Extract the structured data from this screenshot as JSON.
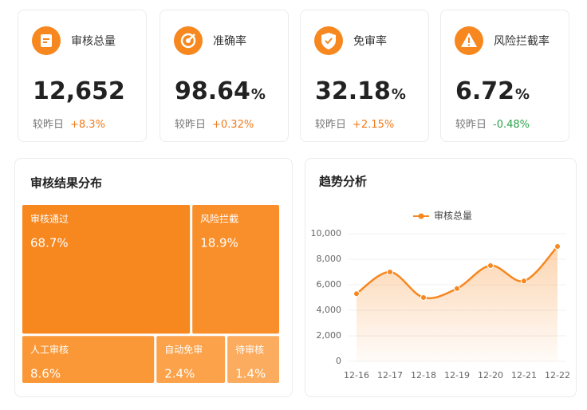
{
  "cards": [
    {
      "label": "审核总量",
      "value": "12,652",
      "compare_label": "较昨日",
      "change": "+8.3%"
    },
    {
      "label": "准确率",
      "value": "98.64",
      "unit": "%",
      "compare_label": "较昨日",
      "change": "+0.32%"
    },
    {
      "label": "免审率",
      "value": "32.18",
      "unit": "%",
      "compare_label": "较昨日",
      "change": "+2.15%"
    },
    {
      "label": "风险拦截率",
      "value": "6.72",
      "unit": "%",
      "compare_label": "较昨日",
      "change": "-0.48%"
    }
  ],
  "chart_data": [
    {
      "type": "treemap",
      "title": "审核结果分布",
      "categories": [
        "审核通过",
        "风险拦截",
        "人工审核",
        "自动免审",
        "待审核"
      ],
      "values": [
        68.7,
        18.9,
        8.6,
        2.4,
        1.4
      ],
      "value_labels": [
        "68.7%",
        "18.9%",
        "8.6%",
        "2.4%",
        "1.4%"
      ],
      "colors": [
        "#f7871f",
        "#f98f2b",
        "#fa9837",
        "#fba24b",
        "#fbac5e"
      ]
    },
    {
      "type": "line",
      "title": "趋势分析",
      "categories": [
        "12-16",
        "12-17",
        "12-18",
        "12-19",
        "12-20",
        "12-21",
        "12-22"
      ],
      "series": [
        {
          "name": "审核总量",
          "color": "#f7871f",
          "values": [
            5300,
            7000,
            5000,
            5700,
            7500,
            6300,
            9000
          ]
        }
      ],
      "ylim": [
        0,
        10000
      ],
      "yticks": [
        0,
        {
          "value": 2000,
          "label": "2,000"
        },
        {
          "value": 4000,
          "label": "4,000"
        },
        {
          "value": 6000,
          "label": "6,000"
        },
        {
          "value": 8000,
          "label": "8,000"
        },
        {
          "value": 10000,
          "label": "10,000"
        }
      ],
      "legend": "top"
    }
  ]
}
